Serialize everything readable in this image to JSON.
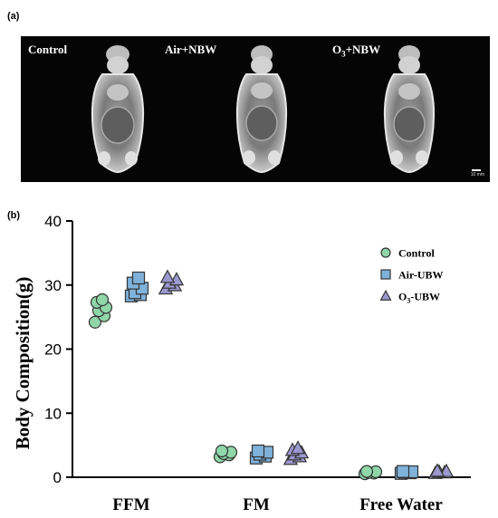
{
  "panels": {
    "a_label": "(a)",
    "b_label": "(b)",
    "mri": {
      "captions": [
        {
          "id": "control",
          "text": "Control"
        },
        {
          "id": "air",
          "text": "Air+NBW"
        },
        {
          "id": "o3",
          "text_main": "O",
          "text_sub": "3",
          "text_tail": "+NBW"
        }
      ],
      "scale_text": "10 mm"
    }
  },
  "chart_data": {
    "type": "scatter",
    "ylabel": "Body Composition(g)",
    "ylim": [
      0,
      40
    ],
    "yticks": [
      0,
      10,
      20,
      30,
      40
    ],
    "categories": [
      "FFM",
      "FM",
      "Free Water"
    ],
    "legend_position": "top-right",
    "series": [
      {
        "name": "Control",
        "legend": {
          "main": "Control"
        },
        "marker": "circle",
        "color": "#8fd6a8",
        "values": [
          [
            24.2,
            25.2,
            26.0,
            26.5,
            27.3,
            27.7
          ],
          [
            3.2,
            3.5,
            3.7,
            3.9,
            4.1
          ],
          [
            0.55,
            0.65,
            0.75,
            0.85,
            0.9
          ]
        ]
      },
      {
        "name": "Air-UBW",
        "legend": {
          "main": "Air-UBW"
        },
        "marker": "square",
        "color": "#7fb2da",
        "values": [
          [
            28.3,
            28.5,
            28.8,
            29.5,
            30.3,
            31.1
          ],
          [
            3.0,
            3.3,
            3.6,
            3.9,
            4.1
          ],
          [
            0.6,
            0.7,
            0.8,
            0.85,
            0.9
          ]
        ]
      },
      {
        "name": "O3-UBW",
        "legend": {
          "main": "O",
          "sub": "3",
          "tail": "-UBW"
        },
        "marker": "triangle",
        "color": "#9b98cf",
        "values": [
          [
            29.4,
            29.9,
            30.3,
            30.8,
            31.2
          ],
          [
            2.8,
            3.2,
            3.5,
            3.8,
            4.2,
            4.5
          ],
          [
            0.6,
            0.7,
            0.8,
            0.9,
            0.95
          ]
        ]
      }
    ]
  }
}
